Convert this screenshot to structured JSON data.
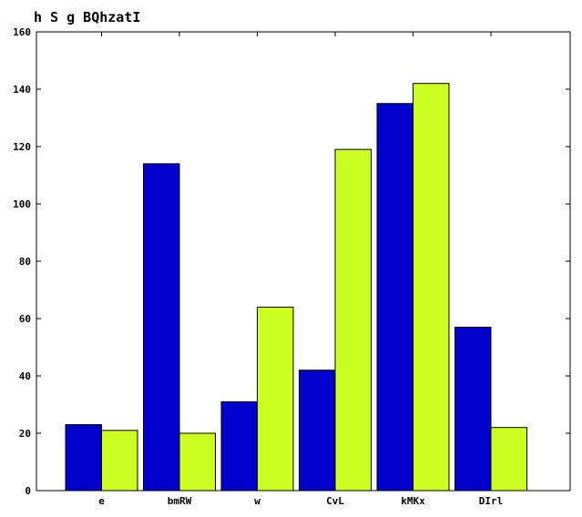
{
  "chart_data": {
    "type": "bar",
    "title": "h S g BQhzatI",
    "xlabel": "",
    "ylabel": "",
    "categories": [
      "e",
      "bmRW",
      "w",
      "CvL",
      "kMKx",
      "DIrl"
    ],
    "series": [
      {
        "color": "#0000cc",
        "values": [
          23,
          114,
          31,
          42,
          135,
          57
        ]
      },
      {
        "color": "#ccff22",
        "values": [
          21,
          20,
          64,
          119,
          142,
          22
        ]
      }
    ],
    "ylim": [
      0,
      160
    ],
    "yticks": [
      0,
      20,
      40,
      60,
      80,
      100,
      120,
      140,
      160
    ],
    "grid": false,
    "legend": "none"
  }
}
